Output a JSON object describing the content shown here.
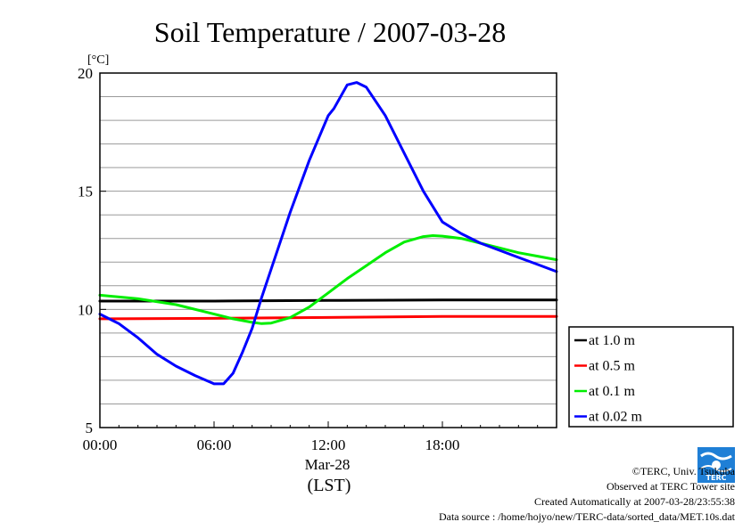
{
  "chart_data": {
    "type": "line",
    "title": "Soil Temperature / 2007-03-28",
    "ylabel": "[°C]",
    "xlabel": "(LST)",
    "date_label": "Mar-28",
    "xlim": [
      0,
      24
    ],
    "ylim": [
      5,
      20
    ],
    "yticks": [
      5,
      10,
      15,
      20
    ],
    "xticks": [
      {
        "value": 0,
        "label": "00:00"
      },
      {
        "value": 6,
        "label": "06:00"
      },
      {
        "value": 12,
        "label": "12:00"
      },
      {
        "value": 18,
        "label": "18:00"
      }
    ],
    "grid": true,
    "legend_position": "right",
    "series": [
      {
        "name": "at 1.0 m",
        "color": "#000000",
        "x": [
          0,
          6,
          12,
          18,
          24
        ],
        "values": [
          10.35,
          10.35,
          10.38,
          10.4,
          10.4
        ]
      },
      {
        "name": "at 0.5 m",
        "color": "#ff0000",
        "x": [
          0,
          6,
          12,
          18,
          24
        ],
        "values": [
          9.6,
          9.62,
          9.66,
          9.7,
          9.7
        ]
      },
      {
        "name": "at 0.1 m",
        "color": "#00ee00",
        "x": [
          0,
          2,
          4,
          6,
          7,
          8,
          8.5,
          9,
          10,
          11,
          12,
          13,
          14,
          15,
          16,
          17,
          17.5,
          18,
          19,
          20,
          21,
          22,
          23,
          24
        ],
        "values": [
          10.6,
          10.45,
          10.2,
          9.8,
          9.6,
          9.45,
          9.4,
          9.42,
          9.65,
          10.1,
          10.7,
          11.3,
          11.85,
          12.4,
          12.85,
          13.08,
          13.12,
          13.1,
          13.0,
          12.8,
          12.6,
          12.4,
          12.25,
          12.1
        ]
      },
      {
        "name": "at 0.02 m",
        "color": "#0000ff",
        "x": [
          0,
          1,
          2,
          3,
          4,
          5,
          6,
          6.5,
          7,
          7.5,
          8,
          8.5,
          9,
          10,
          11,
          12,
          12.3,
          13,
          13.5,
          14,
          15,
          16,
          17,
          18,
          19,
          20,
          21,
          22,
          23,
          24
        ],
        "values": [
          9.8,
          9.4,
          8.8,
          8.1,
          7.6,
          7.2,
          6.85,
          6.85,
          7.3,
          8.2,
          9.2,
          10.5,
          11.7,
          14.1,
          16.3,
          18.2,
          18.5,
          19.5,
          19.6,
          19.4,
          18.2,
          16.6,
          15.0,
          13.7,
          13.2,
          12.8,
          12.5,
          12.2,
          11.9,
          11.6
        ]
      }
    ]
  },
  "footer": {
    "credit": "©TERC, Univ. Tsukuba",
    "site": "Observed at TERC Tower site",
    "created": "Created Automatically at 2007-03-28/23:55:38",
    "source": "Data source : /home/hojyo/new/TERC-data/sorted_data/MET.10s.dat"
  },
  "logo": {
    "text": "TERC"
  }
}
